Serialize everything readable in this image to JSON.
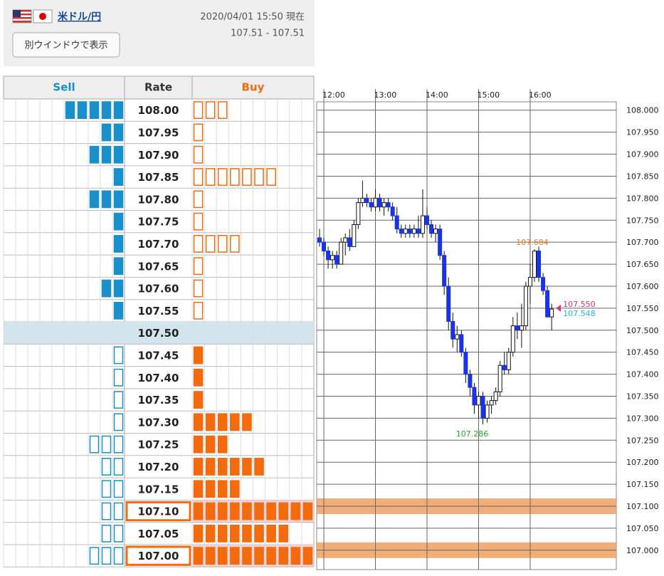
{
  "header": {
    "pair": "米ドル/円",
    "datetime": "2020/04/01 15:50 現在",
    "rate_range": "107.51 - 107.51",
    "button": "別ウインドウで表示"
  },
  "order_book": {
    "columns": [
      "Sell",
      "Rate",
      "Buy"
    ],
    "rows": [
      {
        "rate": "108.00",
        "sell": 5,
        "buy": 3
      },
      {
        "rate": "107.95",
        "sell": 2,
        "buy": 1
      },
      {
        "rate": "107.90",
        "sell": 3,
        "buy": 1
      },
      {
        "rate": "107.85",
        "sell": 1,
        "buy": 7
      },
      {
        "rate": "107.80",
        "sell": 3,
        "buy": 1
      },
      {
        "rate": "107.75",
        "sell": 1,
        "buy": 1
      },
      {
        "rate": "107.70",
        "sell": 1,
        "buy": 4
      },
      {
        "rate": "107.65",
        "sell": 1,
        "buy": 1
      },
      {
        "rate": "107.60",
        "sell": 2,
        "buy": 1
      },
      {
        "rate": "107.55",
        "sell": 1,
        "buy": 1
      },
      {
        "rate": "107.50",
        "current": true
      },
      {
        "rate": "107.45",
        "sell": 1,
        "buy": 1
      },
      {
        "rate": "107.40",
        "sell": 1,
        "buy": 1
      },
      {
        "rate": "107.35",
        "sell": 1,
        "buy": 1
      },
      {
        "rate": "107.30",
        "sell": 1,
        "buy": 5
      },
      {
        "rate": "107.25",
        "sell": 3,
        "buy": 3
      },
      {
        "rate": "107.20",
        "sell": 2,
        "buy": 6
      },
      {
        "rate": "107.15",
        "sell": 2,
        "buy": 4
      },
      {
        "rate": "107.10",
        "sell": 2,
        "buy": 10,
        "alert": true
      },
      {
        "rate": "107.05",
        "sell": 2,
        "buy": 8
      },
      {
        "rate": "107.00",
        "sell": 3,
        "buy": 10,
        "alert": true
      }
    ]
  },
  "chart_data": {
    "type": "candlestick",
    "categories": [
      null,
      "12:00",
      null,
      null,
      null,
      null,
      null,
      null,
      null,
      null,
      null,
      null,
      null,
      "13:00",
      null,
      null,
      null,
      null,
      null,
      null,
      null,
      null,
      null,
      null,
      null,
      "14:00",
      null,
      null,
      null,
      null,
      null,
      null,
      null,
      null,
      null,
      null,
      null,
      "15:00",
      null,
      null,
      null,
      null,
      null,
      null,
      null,
      null,
      null,
      null,
      null,
      "16:00",
      null,
      null,
      null,
      null,
      null
    ],
    "open": [
      107.71,
      107.7,
      107.68,
      107.66,
      107.67,
      107.65,
      107.7,
      107.71,
      107.69,
      107.74,
      107.79,
      107.8,
      107.79,
      107.78,
      107.8,
      107.78,
      107.79,
      107.78,
      107.76,
      107.73,
      107.72,
      107.73,
      107.72,
      107.73,
      107.72,
      107.76,
      107.74,
      107.72,
      107.73,
      107.67,
      107.6,
      107.52,
      107.48,
      107.49,
      107.45,
      107.4,
      107.37,
      107.33,
      107.35,
      107.3,
      107.33,
      107.34,
      107.36,
      107.42,
      107.41,
      107.45,
      107.51,
      107.5,
      107.51,
      107.6,
      107.62,
      107.68,
      107.62,
      107.59,
      107.53
    ],
    "high": [
      107.73,
      107.71,
      107.69,
      107.68,
      107.68,
      107.71,
      107.72,
      107.73,
      107.75,
      107.8,
      107.84,
      107.81,
      107.8,
      107.82,
      107.81,
      107.8,
      107.8,
      107.79,
      107.78,
      107.74,
      107.74,
      107.74,
      107.74,
      107.76,
      107.82,
      107.78,
      107.75,
      107.74,
      107.74,
      107.68,
      107.62,
      107.54,
      107.51,
      107.5,
      107.46,
      107.41,
      107.38,
      107.36,
      107.36,
      107.34,
      107.35,
      107.37,
      107.43,
      107.45,
      107.46,
      107.53,
      107.54,
      107.56,
      107.61,
      107.65,
      107.684,
      107.69,
      107.63,
      107.6,
      107.56
    ],
    "low": [
      107.69,
      107.67,
      107.64,
      107.64,
      107.64,
      107.65,
      107.67,
      107.68,
      107.69,
      107.73,
      107.78,
      107.78,
      107.77,
      107.77,
      107.77,
      107.76,
      107.77,
      107.75,
      107.72,
      107.71,
      107.71,
      107.71,
      107.71,
      107.71,
      107.71,
      107.73,
      107.71,
      107.7,
      107.66,
      107.58,
      107.5,
      107.46,
      107.45,
      107.44,
      107.38,
      107.35,
      107.31,
      107.3,
      107.286,
      107.29,
      107.31,
      107.33,
      107.35,
      107.4,
      107.4,
      107.44,
      107.48,
      107.46,
      107.5,
      107.56,
      107.61,
      107.61,
      107.58,
      107.53,
      107.5
    ],
    "close": [
      107.7,
      107.68,
      107.66,
      107.67,
      107.65,
      107.7,
      107.71,
      107.69,
      107.74,
      107.79,
      107.8,
      107.79,
      107.78,
      107.8,
      107.78,
      107.79,
      107.78,
      107.76,
      107.73,
      107.72,
      107.73,
      107.72,
      107.73,
      107.72,
      107.76,
      107.74,
      107.72,
      107.73,
      107.67,
      107.6,
      107.52,
      107.48,
      107.49,
      107.45,
      107.4,
      107.37,
      107.33,
      107.35,
      107.3,
      107.33,
      107.34,
      107.36,
      107.42,
      107.41,
      107.45,
      107.51,
      107.5,
      107.51,
      107.6,
      107.62,
      107.68,
      107.62,
      107.59,
      107.53,
      107.548
    ],
    "up_color": "#ffffff",
    "down_color": "#1a33e6",
    "ylim": [
      106.956,
      108.019
    ],
    "yticks": [
      {
        "value": 108,
        "label": "108.000"
      },
      {
        "value": 107.95,
        "label": "107.950"
      },
      {
        "value": 107.9,
        "label": "107.900"
      },
      {
        "value": 107.85,
        "label": "107.850"
      },
      {
        "value": 107.8,
        "label": "107.800"
      },
      {
        "value": 107.75,
        "label": "107.750"
      },
      {
        "value": 107.7,
        "label": "107.700"
      },
      {
        "value": 107.65,
        "label": "107.650"
      },
      {
        "value": 107.6,
        "label": "107.600"
      },
      {
        "value": 107.55,
        "label": "107.550"
      },
      {
        "value": 107.5,
        "label": "107.500"
      },
      {
        "value": 107.45,
        "label": "107.450"
      },
      {
        "value": 107.4,
        "label": "107.400"
      },
      {
        "value": 107.35,
        "label": "107.350"
      },
      {
        "value": 107.3,
        "label": "107.300"
      },
      {
        "value": 107.25,
        "label": "107.250"
      },
      {
        "value": 107.2,
        "label": "107.200"
      },
      {
        "value": 107.15,
        "label": "107.150"
      },
      {
        "value": 107.1,
        "label": "107.100"
      },
      {
        "value": 107.05,
        "label": "107.050"
      },
      {
        "value": 107,
        "label": "107.000"
      }
    ],
    "grid": true,
    "bands": [
      107.1,
      107.0
    ],
    "band_color": "#f0a060",
    "high_label": {
      "value": 107.684,
      "label": "107.684",
      "color": "#f07820"
    },
    "low_label": {
      "value": 107.286,
      "label": "107.286",
      "color": "#20b020"
    },
    "ask": {
      "value": 107.55,
      "label": "107.550",
      "color": "#e0306a"
    },
    "bid": {
      "value": 107.548,
      "label": "107.548",
      "color": "#20b0e8"
    }
  }
}
